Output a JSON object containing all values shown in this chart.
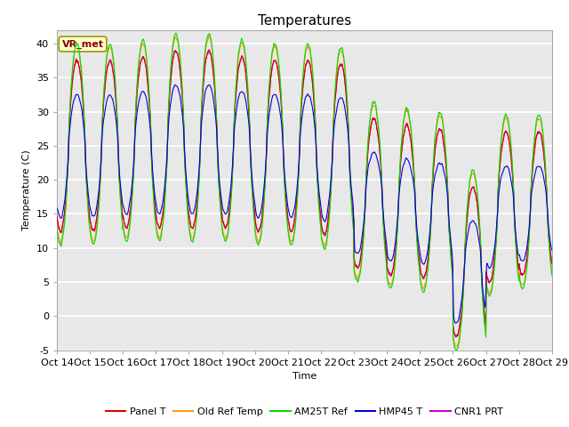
{
  "title": "Temperatures",
  "ylabel": "Temperature (C)",
  "xlabel": "Time",
  "ylim": [
    -5,
    42
  ],
  "xlim": [
    0,
    15
  ],
  "annotation": "VR_met",
  "series_colors": {
    "Panel T": "#dd0000",
    "Old Ref Temp": "#ff9900",
    "AM25T Ref": "#00dd00",
    "HMP45 T": "#0000dd",
    "CNR1 PRT": "#cc00cc"
  },
  "xtick_labels": [
    "Oct 14",
    "Oct 15",
    "Oct 16",
    "Oct 17",
    "Oct 18",
    "Oct 19",
    "Oct 20",
    "Oct 21",
    "Oct 22",
    "Oct 23",
    "Oct 24",
    "Oct 25",
    "Oct 26",
    "Oct 27",
    "Oct 28",
    "Oct 29"
  ],
  "ytick_values": [
    -5,
    0,
    5,
    10,
    15,
    20,
    25,
    30,
    35,
    40
  ],
  "plot_bg_color": "#e8e8e8",
  "grid_color": "#ffffff",
  "title_fontsize": 11,
  "axis_label_fontsize": 8,
  "tick_fontsize": 8,
  "legend_fontsize": 8
}
